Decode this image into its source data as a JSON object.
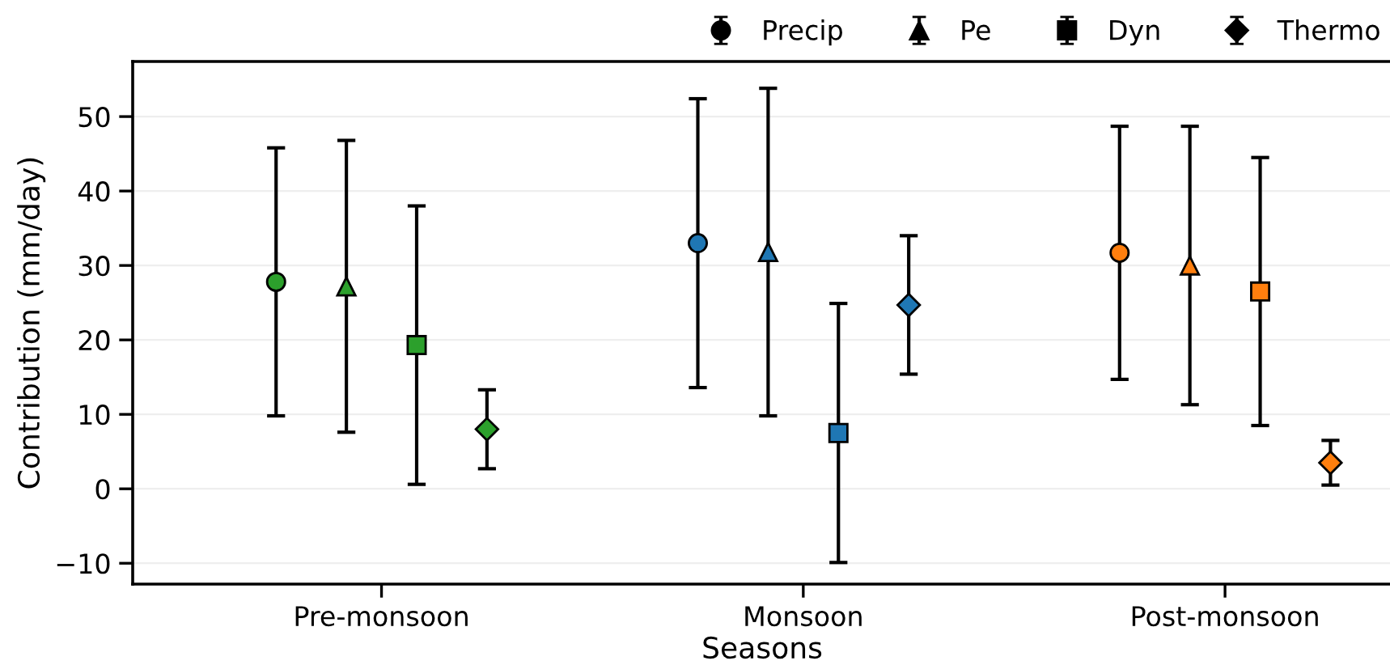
{
  "chart_data": {
    "type": "scatter",
    "xlabel": "Seasons",
    "ylabel": "Contribution (mm/day)",
    "categories": [
      "Pre-monsoon",
      "Monsoon",
      "Post-monsoon"
    ],
    "series": [
      {
        "name": "Precip",
        "marker": "circle",
        "colors": [
          "#2ca02c",
          "#1f77b4",
          "#ff7f0e"
        ],
        "values": [
          27.8,
          33.0,
          31.7
        ],
        "errors": [
          18.0,
          19.4,
          17.0
        ]
      },
      {
        "name": "Pe",
        "marker": "triangle",
        "colors": [
          "#2ca02c",
          "#1f77b4",
          "#ff7f0e"
        ],
        "values": [
          27.2,
          31.8,
          30.0
        ],
        "errors": [
          19.6,
          22.0,
          18.7
        ]
      },
      {
        "name": "Dyn",
        "marker": "square",
        "colors": [
          "#2ca02c",
          "#1f77b4",
          "#ff7f0e"
        ],
        "values": [
          19.3,
          7.5,
          26.5
        ],
        "errors": [
          18.7,
          17.4,
          18.0
        ]
      },
      {
        "name": "Thermo",
        "marker": "diamond",
        "colors": [
          "#2ca02c",
          "#1f77b4",
          "#ff7f0e"
        ],
        "values": [
          8.0,
          24.7,
          3.5
        ],
        "errors": [
          5.3,
          9.3,
          3.0
        ]
      }
    ],
    "ylim": [
      -12.8,
      57.4
    ],
    "yticks": [
      -10,
      0,
      10,
      20,
      30,
      40,
      50
    ],
    "grid": "y",
    "legend": "top"
  }
}
